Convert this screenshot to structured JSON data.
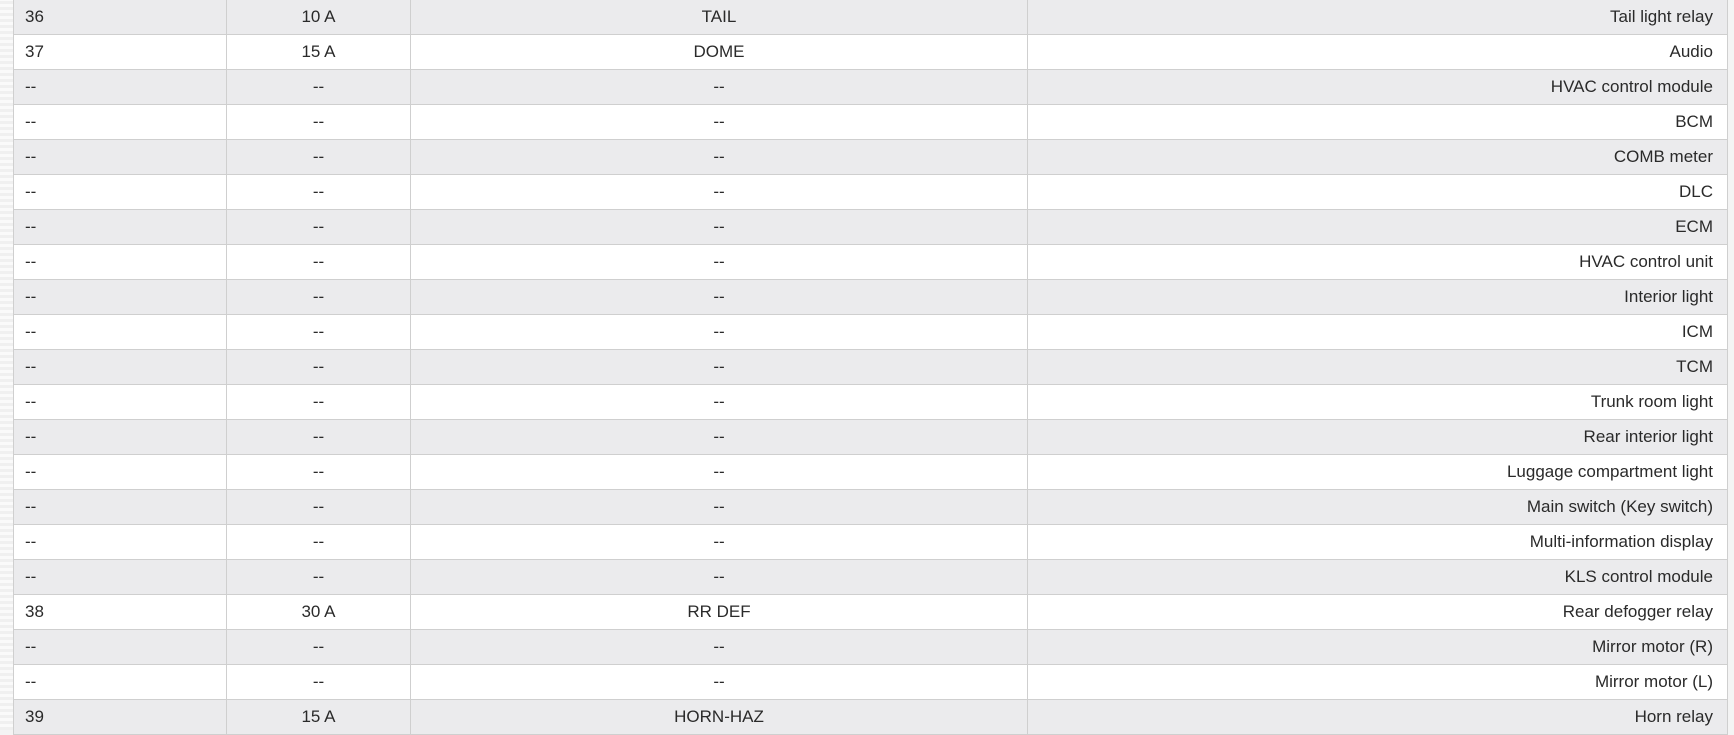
{
  "rows": [
    [
      "36",
      "10 A",
      "TAIL",
      "Tail light relay"
    ],
    [
      "37",
      "15 A",
      "DOME",
      "Audio"
    ],
    [
      "--",
      "--",
      "--",
      "HVAC control module"
    ],
    [
      "--",
      "--",
      "--",
      "BCM"
    ],
    [
      "--",
      "--",
      "--",
      "COMB meter"
    ],
    [
      "--",
      "--",
      "--",
      "DLC"
    ],
    [
      "--",
      "--",
      "--",
      "ECM"
    ],
    [
      "--",
      "--",
      "--",
      "HVAC control unit"
    ],
    [
      "--",
      "--",
      "--",
      "Interior light"
    ],
    [
      "--",
      "--",
      "--",
      "ICM"
    ],
    [
      "--",
      "--",
      "--",
      "TCM"
    ],
    [
      "--",
      "--",
      "--",
      "Trunk room light"
    ],
    [
      "--",
      "--",
      "--",
      "Rear interior light"
    ],
    [
      "--",
      "--",
      "--",
      "Luggage compartment light"
    ],
    [
      "--",
      "--",
      "--",
      "Main switch (Key switch)"
    ],
    [
      "--",
      "--",
      "--",
      "Multi-information display"
    ],
    [
      "--",
      "--",
      "--",
      "KLS control module"
    ],
    [
      "38",
      "30 A",
      "RR DEF",
      "Rear defogger relay"
    ],
    [
      "--",
      "--",
      "--",
      "Mirror motor (R)"
    ],
    [
      "--",
      "--",
      "--",
      "Mirror motor (L)"
    ],
    [
      "39",
      "15 A",
      "HORN-HAZ",
      "Horn relay"
    ]
  ]
}
